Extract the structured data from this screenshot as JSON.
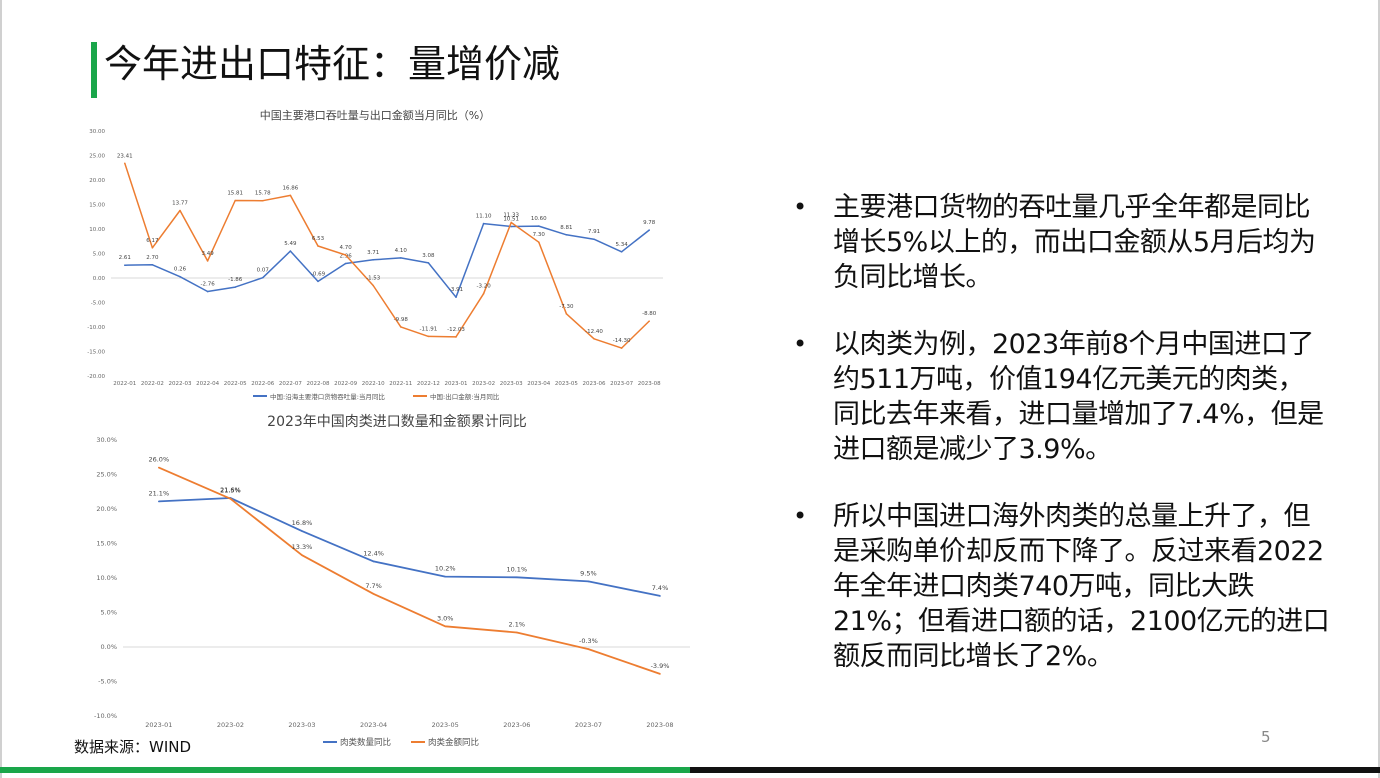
{
  "slide": {
    "title": "今年进出口特征：量增价减",
    "source": "数据来源：WIND",
    "page_number": "5",
    "bullets": [
      "主要港口货物的吞吐量几乎全年都是同比增长5%以上的，而出口金额从5月后均为负同比增长。",
      "以肉类为例，2023年前8个月中国进口了约511万吨，价值194亿元美元的肉类，同比去年来看，进口量增加了7.4%，但是进口额是减少了3.9%。",
      "所以中国进口海外肉类的总量上升了，但是采购单价却反而下降了。反过来看2022年全年进口肉类740万吨，同比大跌21%；但看进口额的话，2100亿元的进口额反而同比增长了2%。"
    ],
    "colors": {
      "accent_green": "#1aa64a",
      "series_blue": "#4472c4",
      "series_orange": "#ed7d31"
    }
  },
  "chart_data": [
    {
      "type": "line",
      "title": "中国主要港口吞吐量与出口金额当月同比（%）",
      "xlabel": "",
      "ylabel": "",
      "ylim": [
        -20,
        30
      ],
      "yticks": [
        "30.00",
        "25.00",
        "20.00",
        "15.00",
        "10.00",
        "5.00",
        "0.00",
        "-5.00",
        "-10.00",
        "-15.00",
        "-20.00"
      ],
      "x": [
        "2022-01",
        "2022-02",
        "2022-03",
        "2022-04",
        "2022-05",
        "2022-06",
        "2022-07",
        "2022-08",
        "2022-09",
        "2022-10",
        "2022-11",
        "2022-12",
        "2023-01",
        "2023-02",
        "2023-03",
        "2023-04",
        "2023-05",
        "2023-06",
        "2023-07",
        "2023-08"
      ],
      "legend_position": "bottom",
      "grid": false,
      "series": [
        {
          "name": "中国:沿海主要港口货物吞吐量:当月同比",
          "color": "#4472c4",
          "values": [
            2.61,
            2.7,
            0.26,
            -2.76,
            -1.86,
            0.07,
            5.49,
            -0.69,
            2.96,
            3.71,
            4.1,
            3.08,
            -3.91,
            11.1,
            10.51,
            10.6,
            8.81,
            7.91,
            5.34,
            9.78
          ],
          "labels": [
            "2.61",
            "2.70",
            "0.26",
            "-2.76",
            "-1.86",
            "0.07",
            "5.49",
            "-0.69",
            "2.96",
            "3.71",
            "4.10",
            "3.08",
            "-3.91",
            "11.10",
            "10.51",
            "10.60",
            "8.81",
            "7.91",
            "5.34",
            "9.78"
          ]
        },
        {
          "name": "中国:出口金额:当月同比",
          "color": "#ed7d31",
          "values": [
            23.41,
            6.17,
            13.77,
            3.49,
            15.81,
            15.78,
            16.86,
            6.53,
            4.7,
            -1.53,
            -9.98,
            -11.91,
            -12.03,
            -3.2,
            11.33,
            7.3,
            -7.3,
            -12.4,
            -14.3,
            -8.8
          ],
          "labels": [
            "23.41",
            "6.17",
            "13.77",
            "3.49",
            "15.81",
            "15.78",
            "16.86",
            "6.53",
            "4.70",
            "-1.53",
            "-9.98",
            "-11.91",
            "-12.03",
            "-3.20",
            "11.33",
            "7.30",
            "-7.30",
            "-12.40",
            "-14.30",
            "-8.80"
          ]
        }
      ]
    },
    {
      "type": "line",
      "title": "2023年中国肉类进口数量和金额累计同比",
      "xlabel": "",
      "ylabel": "",
      "ylim": [
        -10,
        30
      ],
      "yticks": [
        "30.0%",
        "25.0%",
        "20.0%",
        "15.0%",
        "10.0%",
        "5.0%",
        "0.0%",
        "-5.0%",
        "-10.0%"
      ],
      "x": [
        "2023-01",
        "2023-02",
        "2023-03",
        "2023-04",
        "2023-05",
        "2023-06",
        "2023-07",
        "2023-08"
      ],
      "legend_position": "bottom",
      "grid": false,
      "series": [
        {
          "name": "肉类数量同比",
          "color": "#4472c4",
          "values": [
            21.1,
            21.6,
            16.8,
            12.4,
            10.2,
            10.1,
            9.5,
            7.4
          ],
          "labels": [
            "21.1%",
            "21.6%",
            "16.8%",
            "12.4%",
            "10.2%",
            "10.1%",
            "9.5%",
            "7.4%"
          ]
        },
        {
          "name": "肉类金额同比",
          "color": "#ed7d31",
          "values": [
            26.0,
            21.5,
            13.3,
            7.7,
            3.0,
            2.1,
            -0.3,
            -3.9
          ],
          "labels": [
            "26.0%",
            "21.5%",
            "13.3%",
            "7.7%",
            "3.0%",
            "2.1%",
            "-0.3%",
            "-3.9%"
          ]
        }
      ]
    }
  ]
}
